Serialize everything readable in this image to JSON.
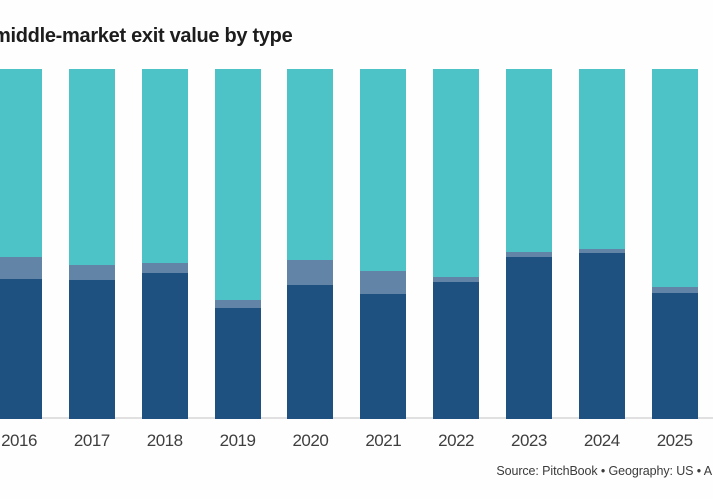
{
  "title": "middle-market exit value by type",
  "source_note": "Source: PitchBook  •  Geography: US  •  A",
  "colors": {
    "dark_blue": "#1F5180",
    "steel_blue": "#6284A6",
    "teal": "#4EC3C7",
    "axis_line": "#E0E0E0",
    "title_text": "#1D1D1D",
    "axis_text": "#3F3F3F"
  },
  "chart_data": {
    "type": "bar",
    "stacked": true,
    "normalized_to_100_percent": true,
    "title": "middle-market exit value by type",
    "xlabel": "",
    "ylabel": "",
    "ylim": [
      0,
      100
    ],
    "grid": false,
    "legend_position": "none-visible-cropped",
    "categories": [
      "2016",
      "2017",
      "2018",
      "2019",
      "2020",
      "2021",
      "2022",
      "2023",
      "2024",
      "2025"
    ],
    "series": [
      {
        "name": "dark-blue-bottom-segment",
        "color": "#1F5180",
        "values": [
          40.0,
          39.7,
          41.8,
          31.6,
          38.2,
          35.6,
          39.2,
          46.4,
          47.3,
          36.0
        ]
      },
      {
        "name": "steel-blue-middle-segment",
        "color": "#6284A6",
        "values": [
          6.2,
          4.4,
          2.9,
          2.3,
          7.2,
          6.6,
          1.3,
          1.3,
          1.4,
          1.8
        ]
      },
      {
        "name": "teal-top-segment",
        "color": "#4EC3C7",
        "values": [
          53.8,
          55.9,
          55.3,
          66.1,
          54.6,
          57.8,
          59.5,
          52.3,
          51.3,
          62.2
        ]
      }
    ]
  }
}
